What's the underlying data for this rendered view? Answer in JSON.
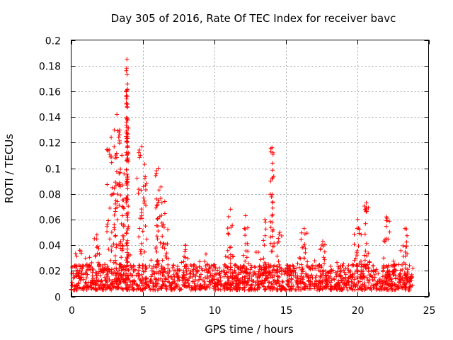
{
  "chart_data": {
    "type": "scatter",
    "title": "Day 305 of 2016, Rate Of TEC Index for receiver bavc",
    "xlabel": "GPS time / hours",
    "ylabel": "ROTI / TECUs",
    "xlim": [
      0,
      25
    ],
    "ylim": [
      0,
      0.2
    ],
    "grid": true,
    "marker": "+",
    "color": "#ff0000",
    "x_ticks": [
      {
        "value": 0,
        "label": "0"
      },
      {
        "value": 5,
        "label": "5"
      },
      {
        "value": 10,
        "label": "10"
      },
      {
        "value": 15,
        "label": "15"
      },
      {
        "value": 20,
        "label": "20"
      },
      {
        "value": 25,
        "label": "25"
      }
    ],
    "y_ticks": [
      {
        "value": 0,
        "label": "0"
      },
      {
        "value": 0.02,
        "label": "0.02"
      },
      {
        "value": 0.04,
        "label": "0.04"
      },
      {
        "value": 0.06,
        "label": "0.06"
      },
      {
        "value": 0.08,
        "label": "0.08"
      },
      {
        "value": 0.1,
        "label": "0.1"
      },
      {
        "value": 0.12,
        "label": "0.12"
      },
      {
        "value": 0.14,
        "label": "0.14"
      },
      {
        "value": 0.16,
        "label": "0.16"
      },
      {
        "value": 0.18,
        "label": "0.18"
      },
      {
        "value": 0.2,
        "label": "0.2"
      }
    ],
    "series": [
      {
        "name": "ROTI",
        "x_range": [
          0,
          23.9
        ],
        "baseline_typical": [
          0.005,
          0.025
        ],
        "peaks": [
          {
            "x_start": 0.3,
            "x_end": 0.9,
            "max": 0.036
          },
          {
            "x_start": 1.6,
            "x_end": 2.0,
            "max": 0.048
          },
          {
            "x_start": 2.5,
            "x_end": 3.1,
            "max": 0.124
          },
          {
            "x_start": 3.0,
            "x_end": 3.4,
            "max": 0.142
          },
          {
            "x_start": 3.4,
            "x_end": 3.7,
            "max": 0.11
          },
          {
            "x_start": 3.85,
            "x_end": 3.95,
            "max": 0.185
          },
          {
            "x_start": 3.9,
            "x_end": 4.0,
            "max": 0.15
          },
          {
            "x_start": 4.6,
            "x_end": 5.3,
            "max": 0.117
          },
          {
            "x_start": 5.9,
            "x_end": 6.3,
            "max": 0.1
          },
          {
            "x_start": 6.3,
            "x_end": 6.8,
            "max": 0.074
          },
          {
            "x_start": 7.8,
            "x_end": 8.2,
            "max": 0.04
          },
          {
            "x_start": 10.9,
            "x_end": 11.4,
            "max": 0.068
          },
          {
            "x_start": 12.0,
            "x_end": 12.4,
            "max": 0.063
          },
          {
            "x_start": 13.4,
            "x_end": 13.7,
            "max": 0.06
          },
          {
            "x_start": 13.9,
            "x_end": 14.2,
            "max": 0.116
          },
          {
            "x_start": 14.4,
            "x_end": 14.8,
            "max": 0.05
          },
          {
            "x_start": 16.0,
            "x_end": 16.6,
            "max": 0.053
          },
          {
            "x_start": 17.4,
            "x_end": 17.8,
            "max": 0.043
          },
          {
            "x_start": 19.8,
            "x_end": 20.3,
            "max": 0.06
          },
          {
            "x_start": 20.5,
            "x_end": 20.8,
            "max": 0.073
          },
          {
            "x_start": 21.8,
            "x_end": 22.3,
            "max": 0.062
          },
          {
            "x_start": 23.2,
            "x_end": 23.5,
            "max": 0.053
          }
        ]
      }
    ]
  }
}
